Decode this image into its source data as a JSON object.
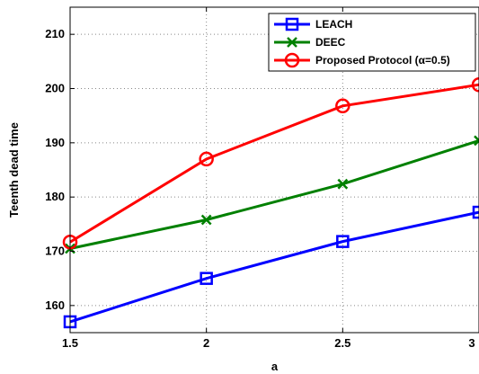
{
  "chart_data": {
    "type": "line",
    "title": "",
    "xlabel": "a",
    "ylabel": "Teenth dead time",
    "xlim": [
      1.5,
      3
    ],
    "ylim": [
      155,
      215
    ],
    "x_ticks": [
      "1.5",
      "2",
      "2.5",
      "3"
    ],
    "y_ticks": [
      "160",
      "170",
      "180",
      "190",
      "200",
      "210"
    ],
    "grid": true,
    "legend_position": "top-right",
    "x": [
      1.5,
      2,
      2.5,
      3
    ],
    "series": [
      {
        "name": "LEACH",
        "color": "#0000ff",
        "marker": "square",
        "values": [
          157,
          165,
          171.8,
          177.2
        ]
      },
      {
        "name": "DEEC",
        "color": "#008000",
        "marker": "x",
        "values": [
          170.5,
          175.8,
          182.4,
          190.4
        ]
      },
      {
        "name": "Proposed Protocol (α=0.5)",
        "color": "#ff0000",
        "marker": "circle",
        "values": [
          171.7,
          187,
          196.8,
          200.7
        ]
      }
    ]
  }
}
